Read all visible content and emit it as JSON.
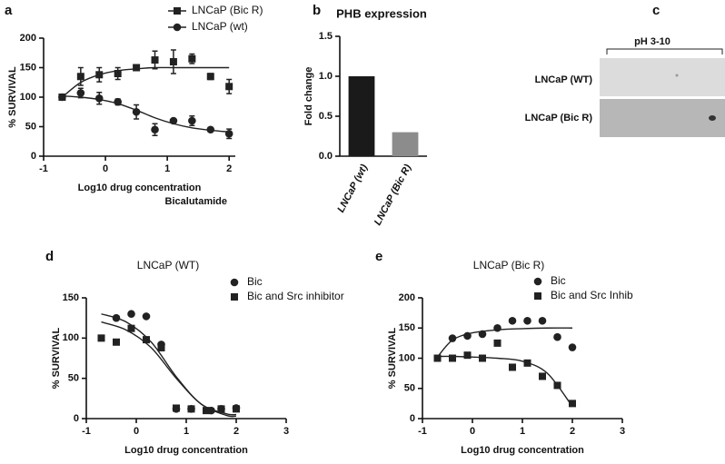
{
  "chart_data": [
    {
      "type": "scatter",
      "panel": "a",
      "ylabel": "% SURVIVAL",
      "xlabel": "Log10 drug concentration",
      "xlabel2": "Bicalutamide",
      "xlim": [
        -1,
        2.1
      ],
      "xticks": [
        -1,
        0,
        1,
        2
      ],
      "ylim": [
        0,
        200
      ],
      "yticks": [
        0,
        50,
        100,
        150,
        200
      ],
      "legend": "top-right",
      "legend_line": true,
      "series": [
        {
          "name": "LNCaP (Bic R)",
          "marker": "square",
          "color": "#222",
          "x": [
            -0.7,
            -0.4,
            -0.1,
            0.2,
            0.5,
            0.8,
            1.1,
            1.4,
            1.7,
            2.0
          ],
          "values": [
            100,
            135,
            138,
            140,
            150,
            163,
            160,
            165,
            135,
            118
          ],
          "errors": [
            0,
            15,
            12,
            10,
            5,
            15,
            20,
            8,
            5,
            12
          ],
          "fit": {
            "x": [
              -0.7,
              -0.4,
              -0.1,
              0.2,
              0.5,
              0.8,
              1.1,
              1.4,
              1.7,
              2.0
            ],
            "values": [
              100,
              125,
              138,
              145,
              148,
              150,
              150,
              150,
              150,
              150
            ]
          }
        },
        {
          "name": "LNCaP  (wt)",
          "marker": "circle",
          "color": "#222",
          "x": [
            -0.7,
            -0.4,
            -0.1,
            0.2,
            0.5,
            0.8,
            1.1,
            1.4,
            1.7,
            2.0
          ],
          "values": [
            100,
            107,
            98,
            92,
            75,
            45,
            60,
            60,
            45,
            38
          ],
          "errors": [
            0,
            8,
            10,
            5,
            12,
            10,
            3,
            8,
            3,
            8
          ],
          "fit": {
            "x": [
              -0.7,
              -0.4,
              -0.1,
              0.2,
              0.5,
              0.8,
              1.1,
              1.4,
              1.7,
              2.0
            ],
            "values": [
              102,
              100,
              96,
              89,
              78,
              65,
              55,
              48,
              44,
              41
            ]
          }
        }
      ]
    },
    {
      "type": "bar",
      "panel": "b",
      "title": "PHB expression",
      "ylabel": "Fold change",
      "categories": [
        "LNCaP (wt)",
        "LNCaP (Bic R)"
      ],
      "values": [
        1.0,
        0.3
      ],
      "colors": [
        "#1a1a1a",
        "#8c8c8c"
      ],
      "ylim": [
        0,
        1.5
      ],
      "yticks": [
        {
          "value": 0,
          "label": "0.0"
        },
        0.5,
        {
          "value": 1,
          "label": "1.0"
        },
        1.5
      ]
    },
    {
      "type": "scatter",
      "panel": "d",
      "title": "LNCaP (WT)",
      "ylabel": "% SURVIVAL",
      "xlabel": "Log10 drug concentration",
      "xlim": [
        -1,
        3
      ],
      "xticks": [
        -1,
        0,
        1,
        2,
        3
      ],
      "ylim": [
        0,
        150
      ],
      "yticks": [
        0,
        50,
        100,
        150
      ],
      "legend": "top-right",
      "legend_line": false,
      "series": [
        {
          "name": "Bic",
          "marker": "circle",
          "color": "#222",
          "x": [
            -0.4,
            -0.1,
            0.2,
            0.5,
            0.8,
            1.1,
            1.5,
            1.7,
            2.0
          ],
          "values": [
            125,
            130,
            127,
            92,
            12,
            12,
            10,
            12,
            13
          ],
          "fit": {
            "x": [
              -0.7,
              -0.2,
              0.3,
              0.8,
              1.3,
              1.8,
              2.0
            ],
            "values": [
              130,
              120,
              95,
              52,
              18,
              6,
              5
            ]
          }
        },
        {
          "name": "Bic and Src inhibitor",
          "marker": "square",
          "color": "#222",
          "x": [
            -0.7,
            -0.4,
            -0.1,
            0.2,
            0.5,
            0.8,
            1.1,
            1.4,
            1.7,
            2.0
          ],
          "values": [
            100,
            95,
            112,
            98,
            88,
            13,
            12,
            10,
            12,
            12
          ],
          "fit": {
            "x": [
              -0.7,
              -0.2,
              0.3,
              0.8,
              1.3,
              1.8,
              2.0
            ],
            "values": [
              120,
              110,
              88,
              50,
              18,
              4,
              3
            ]
          }
        }
      ]
    },
    {
      "type": "scatter",
      "panel": "e",
      "title": "LNCaP (Bic R)",
      "ylabel": "% SURVIVAL",
      "xlabel": "Log10 drug concentration",
      "xlim": [
        -1,
        3
      ],
      "xticks": [
        -1,
        0,
        1,
        2,
        3
      ],
      "ylim": [
        0,
        200
      ],
      "yticks": [
        0,
        50,
        100,
        150,
        200
      ],
      "legend": "top-right",
      "legend_line": false,
      "series": [
        {
          "name": "Bic",
          "marker": "circle",
          "color": "#222",
          "x": [
            -0.4,
            -0.1,
            0.2,
            0.5,
            0.8,
            1.1,
            1.4,
            1.7,
            2.0
          ],
          "values": [
            133,
            137,
            140,
            150,
            162,
            162,
            162,
            135,
            118
          ],
          "fit": {
            "x": [
              -0.7,
              -0.4,
              0,
              0.5,
              1,
              1.5,
              2.0
            ],
            "values": [
              102,
              130,
              142,
              147,
              149,
              150,
              150
            ]
          }
        },
        {
          "name": "Bic and Src Inhib",
          "marker": "square",
          "color": "#222",
          "x": [
            -0.7,
            -0.4,
            -0.1,
            0.2,
            0.5,
            0.8,
            1.1,
            1.4,
            1.7,
            2.0
          ],
          "values": [
            100,
            100,
            105,
            100,
            125,
            85,
            92,
            70,
            55,
            25
          ],
          "fit": {
            "x": [
              -0.7,
              -0.4,
              0,
              0.5,
              1,
              1.5,
              2.0
            ],
            "values": [
              103,
              103,
              102,
              100,
              95,
              75,
              20
            ]
          }
        }
      ]
    }
  ],
  "blot": {
    "panel": "c",
    "label": "pH 3-10",
    "rows": [
      "LNCaP (WT)",
      "LNCaP (Bic R)"
    ]
  }
}
